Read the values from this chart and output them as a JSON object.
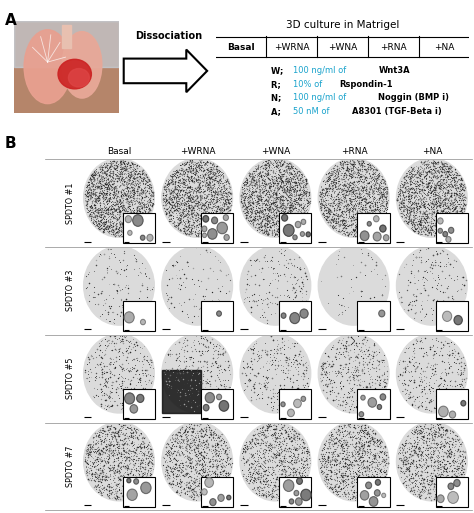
{
  "title_3d": "3D culture in Matrigel",
  "panel_a_label": "A",
  "panel_b_label": "B",
  "dissociation_text": "Dissociation",
  "table_headers": [
    "Basal",
    "+WRNA",
    "+WNA",
    "+RNA",
    "+NA"
  ],
  "legend_items": [
    {
      "prefix": "W; ",
      "blue": "100 ng/ml of ",
      "bold": "Wnt3A"
    },
    {
      "prefix": "R; ",
      "blue": "10% of ",
      "bold": "Rspondin-1"
    },
    {
      "prefix": "N; ",
      "blue": "100 ng/ml of ",
      "bold": "Noggin (BMP i)"
    },
    {
      "prefix": "A; ",
      "blue": "50 nM of ",
      "bold": "A8301 (TGF-Beta i)"
    }
  ],
  "row_labels": [
    "SPDTO #1",
    "SPDTO #3",
    "SPDTO #5",
    "SPDTO #7"
  ],
  "col_headers": [
    "Basal",
    "+WRNA",
    "+WNA",
    "+RNA",
    "+NA"
  ],
  "bg_color": "#ffffff",
  "text_color": "#000000",
  "blue_color": "#1aa3cc",
  "cell_bg": "#f0f0f0",
  "n_rows": 4,
  "n_cols": 5,
  "dot_counts": [
    [
      2200,
      2000,
      2100,
      1900,
      2000
    ],
    [
      150,
      100,
      200,
      60,
      180
    ],
    [
      400,
      350,
      300,
      500,
      380
    ],
    [
      1200,
      1100,
      1000,
      1150,
      1050
    ]
  ],
  "dot_size_range": [
    0.4,
    1.2
  ],
  "circle_fill": 0.86,
  "inset_n_organoids": [
    [
      5,
      8,
      7,
      6,
      5
    ],
    [
      2,
      1,
      3,
      1,
      2
    ],
    [
      3,
      4,
      4,
      5,
      3
    ],
    [
      4,
      5,
      6,
      6,
      4
    ]
  ],
  "has_dark_artifact": [
    [
      false,
      false,
      false,
      false,
      false
    ],
    [
      false,
      false,
      false,
      false,
      false
    ],
    [
      false,
      true,
      false,
      false,
      false
    ],
    [
      false,
      false,
      false,
      false,
      false
    ]
  ],
  "dark_artifact_col2_row2": true
}
